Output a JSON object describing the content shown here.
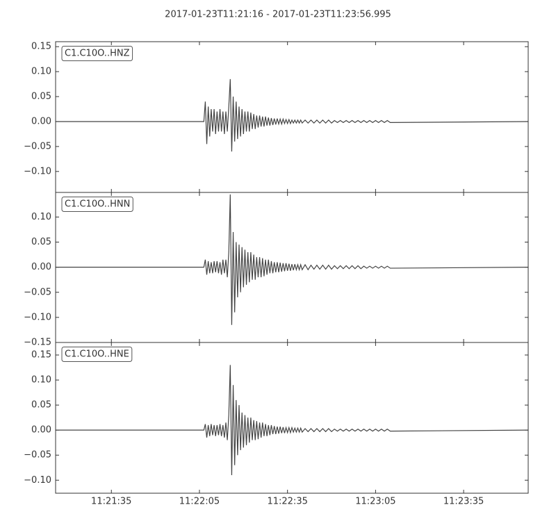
{
  "title": "2017-01-23T11:21:16  -  2017-01-23T11:23:56.995",
  "chart_data": [
    {
      "type": "line",
      "x": [
        40876,
        40926.5,
        40927,
        40927.5,
        40928,
        40928.5,
        40929,
        40929.5,
        40930,
        40930.5,
        40931,
        40931.5,
        40932,
        40932.5,
        40933,
        40933.5,
        40934,
        40934.5,
        40935,
        40935.5,
        40936,
        40936.5,
        40937,
        40937.5,
        40938,
        40938.5,
        40939,
        40939.5,
        40940,
        40940.5,
        40941,
        40941.5,
        40942,
        40942.5,
        40943,
        40943.5,
        40944,
        40944.5,
        40945,
        40945.5,
        40946,
        40946.5,
        40947,
        40947.5,
        40948,
        40948.5,
        40949,
        40949.5,
        40950,
        40950.5,
        40951,
        40951.5,
        40952,
        40952.5,
        40953,
        40953.5,
        40954,
        40954.5,
        40955,
        40955.5,
        40956,
        40956.5,
        40957,
        40957.5,
        40958,
        40958.5,
        40959,
        40959.5,
        40960,
        40961,
        40962,
        40963,
        40964,
        40965,
        40966,
        40967,
        40968,
        40969,
        40970,
        40971,
        40972,
        40973,
        40974,
        40975,
        40976,
        40977,
        40978,
        40979,
        40980,
        40981,
        40982,
        40983,
        40984,
        40985,
        40986,
        40987,
        40988,
        40989,
        40990,
        41036.995
      ],
      "series": [
        {
          "name": "C1.C10O..HNZ",
          "color": "#444444",
          "values": [
            0,
            0,
            0.04,
            -0.045,
            0.03,
            -0.03,
            0.025,
            -0.02,
            0.025,
            -0.025,
            0.02,
            -0.02,
            0.025,
            -0.02,
            0.02,
            -0.025,
            0.02,
            -0.02,
            0.03,
            0.085,
            -0.06,
            0.05,
            -0.04,
            0.04,
            -0.035,
            0.03,
            -0.03,
            0.025,
            -0.025,
            0.02,
            -0.02,
            0.02,
            -0.02,
            0.018,
            -0.015,
            0.015,
            -0.015,
            0.012,
            -0.012,
            0.012,
            -0.01,
            0.01,
            -0.01,
            0.01,
            -0.008,
            0.008,
            -0.008,
            0.007,
            -0.007,
            0.006,
            -0.006,
            0.006,
            -0.005,
            0.005,
            -0.005,
            0.005,
            -0.004,
            0.004,
            -0.004,
            0.004,
            -0.004,
            0.003,
            -0.003,
            0.003,
            -0.003,
            0.003,
            -0.003,
            0.003,
            -0.003,
            0.003,
            -0.003,
            0.003,
            -0.003,
            0.003,
            -0.003,
            0.003,
            -0.003,
            0.003,
            -0.003,
            0.002,
            -0.002,
            0.002,
            -0.002,
            0.002,
            -0.002,
            0.002,
            -0.002,
            0.002,
            -0.002,
            0.002,
            -0.002,
            0.002,
            -0.002,
            0.002,
            -0.002,
            0.002,
            -0.002,
            0.002,
            -0.002,
            0
          ]
        }
      ],
      "xlim": [
        40876,
        41036.995
      ],
      "ylim": [
        -0.142,
        0.16
      ],
      "yticks": [
        {
          "value": -0.1,
          "label": "−0.10"
        },
        {
          "value": -0.05,
          "label": "−0.05"
        },
        {
          "value": 0,
          "label": "0.00"
        },
        {
          "value": 0.05,
          "label": "0.05"
        },
        {
          "value": 0.1,
          "label": "0.10"
        },
        {
          "value": 0.15,
          "label": "0.15"
        }
      ]
    },
    {
      "type": "line",
      "x": [
        40876,
        40926.5,
        40927,
        40927.5,
        40928,
        40928.5,
        40929,
        40929.5,
        40930,
        40930.5,
        40931,
        40931.5,
        40932,
        40932.5,
        40933,
        40933.5,
        40934,
        40934.5,
        40935,
        40935.5,
        40936,
        40936.5,
        40937,
        40937.5,
        40938,
        40938.5,
        40939,
        40939.5,
        40940,
        40940.5,
        40941,
        40941.5,
        40942,
        40942.5,
        40943,
        40943.5,
        40944,
        40944.5,
        40945,
        40945.5,
        40946,
        40946.5,
        40947,
        40947.5,
        40948,
        40948.5,
        40949,
        40949.5,
        40950,
        40950.5,
        40951,
        40951.5,
        40952,
        40952.5,
        40953,
        40953.5,
        40954,
        40954.5,
        40955,
        40955.5,
        40956,
        40956.5,
        40957,
        40957.5,
        40958,
        40958.5,
        40959,
        40959.5,
        40960,
        40961,
        40962,
        40963,
        40964,
        40965,
        40966,
        40967,
        40968,
        40969,
        40970,
        40971,
        40972,
        40973,
        40974,
        40975,
        40976,
        40977,
        40978,
        40979,
        40980,
        40981,
        40982,
        40983,
        40984,
        40985,
        40986,
        40987,
        40988,
        40989,
        40990,
        41036.995
      ],
      "series": [
        {
          "name": "C1.C10O..HNN",
          "color": "#444444",
          "values": [
            0,
            0,
            0.015,
            -0.015,
            0.012,
            -0.012,
            0.01,
            -0.012,
            0.012,
            -0.01,
            0.012,
            -0.012,
            0.01,
            -0.015,
            0.015,
            -0.012,
            0.015,
            -0.02,
            0.03,
            0.145,
            -0.115,
            0.07,
            -0.09,
            0.05,
            -0.06,
            0.045,
            -0.05,
            0.04,
            -0.04,
            0.035,
            -0.035,
            0.03,
            -0.03,
            0.03,
            -0.025,
            0.025,
            -0.025,
            0.02,
            -0.02,
            0.02,
            -0.02,
            0.018,
            -0.018,
            0.015,
            -0.015,
            0.015,
            -0.012,
            0.012,
            -0.012,
            0.01,
            -0.01,
            0.01,
            -0.01,
            0.009,
            -0.009,
            0.008,
            -0.008,
            0.008,
            -0.007,
            0.007,
            -0.007,
            0.006,
            -0.006,
            0.006,
            -0.005,
            0.005,
            -0.005,
            0.005,
            -0.005,
            0.005,
            -0.005,
            0.004,
            -0.004,
            0.004,
            -0.004,
            0.004,
            -0.004,
            0.004,
            -0.004,
            0.003,
            -0.003,
            0.003,
            -0.003,
            0.003,
            -0.003,
            0.003,
            -0.003,
            0.003,
            -0.003,
            0.002,
            -0.002,
            0.002,
            -0.002,
            0.002,
            -0.002,
            0.002,
            -0.002,
            0.002,
            -0.002,
            0
          ]
        }
      ],
      "xlim": [
        40876,
        41036.995
      ],
      "ylim": [
        -0.15,
        0.149
      ],
      "yticks": [
        {
          "value": -0.15,
          "label": "−0.15"
        },
        {
          "value": -0.1,
          "label": "−0.10"
        },
        {
          "value": -0.05,
          "label": "−0.05"
        },
        {
          "value": 0,
          "label": "0.00"
        },
        {
          "value": 0.05,
          "label": "0.05"
        },
        {
          "value": 0.1,
          "label": "0.10"
        }
      ]
    },
    {
      "type": "line",
      "x": [
        40876,
        40926.5,
        40927,
        40927.5,
        40928,
        40928.5,
        40929,
        40929.5,
        40930,
        40930.5,
        40931,
        40931.5,
        40932,
        40932.5,
        40933,
        40933.5,
        40934,
        40934.5,
        40935,
        40935.5,
        40936,
        40936.5,
        40937,
        40937.5,
        40938,
        40938.5,
        40939,
        40939.5,
        40940,
        40940.5,
        40941,
        40941.5,
        40942,
        40942.5,
        40943,
        40943.5,
        40944,
        40944.5,
        40945,
        40945.5,
        40946,
        40946.5,
        40947,
        40947.5,
        40948,
        40948.5,
        40949,
        40949.5,
        40950,
        40950.5,
        40951,
        40951.5,
        40952,
        40952.5,
        40953,
        40953.5,
        40954,
        40954.5,
        40955,
        40955.5,
        40956,
        40956.5,
        40957,
        40957.5,
        40958,
        40958.5,
        40959,
        40959.5,
        40960,
        40961,
        40962,
        40963,
        40964,
        40965,
        40966,
        40967,
        40968,
        40969,
        40970,
        40971,
        40972,
        40973,
        40974,
        40975,
        40976,
        40977,
        40978,
        40979,
        40980,
        40981,
        40982,
        40983,
        40984,
        40985,
        40986,
        40987,
        40988,
        40989,
        40990,
        41036.995
      ],
      "series": [
        {
          "name": "C1.C10O..HNE",
          "color": "#444444",
          "values": [
            0,
            0,
            0.012,
            -0.015,
            0.01,
            -0.012,
            0.012,
            -0.01,
            0.01,
            -0.012,
            0.01,
            -0.01,
            0.012,
            -0.012,
            0.01,
            -0.015,
            0.015,
            -0.02,
            0.03,
            0.13,
            -0.09,
            0.09,
            -0.07,
            0.06,
            -0.05,
            0.05,
            -0.04,
            0.035,
            -0.035,
            0.03,
            -0.03,
            0.025,
            -0.025,
            0.025,
            -0.02,
            0.02,
            -0.02,
            0.018,
            -0.018,
            0.015,
            -0.015,
            0.015,
            -0.012,
            0.012,
            -0.012,
            0.01,
            -0.01,
            0.01,
            -0.008,
            0.008,
            -0.008,
            0.007,
            -0.007,
            0.007,
            -0.006,
            0.006,
            -0.006,
            0.005,
            -0.005,
            0.005,
            -0.005,
            0.005,
            -0.004,
            0.004,
            -0.004,
            0.004,
            -0.004,
            0.004,
            -0.004,
            0.003,
            -0.003,
            0.003,
            -0.003,
            0.003,
            -0.003,
            0.003,
            -0.003,
            0.003,
            -0.003,
            0.002,
            -0.002,
            0.002,
            -0.002,
            0.002,
            -0.002,
            0.002,
            -0.002,
            0.002,
            -0.002,
            0.002,
            -0.002,
            0.002,
            -0.002,
            0.002,
            -0.002,
            0.002,
            -0.002,
            0.002,
            -0.002,
            0
          ]
        }
      ],
      "xlim": [
        40876,
        41036.995
      ],
      "ylim": [
        -0.126,
        0.175
      ],
      "xticks": [
        {
          "value": 40895,
          "label": "11:21:35"
        },
        {
          "value": 40925,
          "label": "11:22:05"
        },
        {
          "value": 40955,
          "label": "11:22:35"
        },
        {
          "value": 40985,
          "label": "11:23:05"
        },
        {
          "value": 41015,
          "label": "11:23:35"
        }
      ],
      "yticks": [
        {
          "value": -0.1,
          "label": "−0.10"
        },
        {
          "value": -0.05,
          "label": "−0.05"
        },
        {
          "value": 0,
          "label": "0.00"
        },
        {
          "value": 0.05,
          "label": "0.05"
        },
        {
          "value": 0.1,
          "label": "0.10"
        },
        {
          "value": 0.15,
          "label": "0.15"
        }
      ]
    }
  ]
}
